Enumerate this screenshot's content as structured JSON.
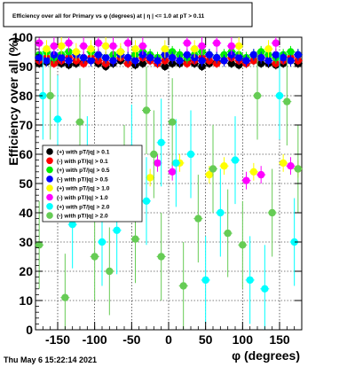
{
  "title": "Efficiency over all for Primary vs φ (degrees) at | η | <= 1.0 at pT > 0.11",
  "timestamp": "Thu May  6 15:22:14 2021",
  "chart_data": {
    "type": "scatter",
    "xlabel": "φ (degrees)",
    "ylabel": "Efficiency over all (%)",
    "xlim": [
      -180,
      180
    ],
    "ylim": [
      0,
      100
    ],
    "x_ticks": [
      -150,
      -100,
      -50,
      0,
      50,
      100,
      150
    ],
    "x_tick_labels": [
      "-150",
      "-100",
      "-50",
      "0",
      "50",
      "100",
      "150"
    ],
    "y_ticks": [
      0,
      10,
      20,
      30,
      40,
      50,
      60,
      70,
      80,
      90,
      100
    ],
    "y_tick_labels": [
      "0",
      "10",
      "20",
      "30",
      "40",
      "50",
      "60",
      "70",
      "80",
      "90",
      "100"
    ],
    "grid": true,
    "legend_position": "left-middle",
    "series": [
      {
        "name": "(+) with pT/|q| > 0.1",
        "color": "#000000",
        "x": [
          -175,
          -165,
          -155,
          -145,
          -135,
          -125,
          -115,
          -105,
          -95,
          -85,
          -75,
          -65,
          -55,
          -45,
          -35,
          -25,
          -15,
          -5,
          5,
          15,
          25,
          35,
          45,
          55,
          65,
          75,
          85,
          95,
          105,
          115,
          125,
          135,
          145,
          155,
          165,
          175
        ],
        "y": [
          91,
          91.5,
          92,
          91,
          90.5,
          91,
          91.5,
          92,
          91,
          90,
          91,
          92,
          91,
          90.5,
          91,
          92,
          91,
          90,
          91,
          91,
          92,
          91,
          90,
          91,
          91.5,
          92,
          91,
          90.5,
          91,
          92,
          91,
          91,
          90.5,
          91,
          92,
          91
        ],
        "yerr": [
          1.5,
          1.5,
          1.5,
          1.5,
          1.5,
          1.5,
          1.5,
          1.5,
          1.5,
          1.5,
          1.5,
          1.5,
          1.5,
          1.5,
          1.5,
          1.5,
          1.5,
          1.5,
          1.5,
          1.5,
          1.5,
          1.5,
          1.5,
          1.5,
          1.5,
          1.5,
          1.5,
          1.5,
          1.5,
          1.5,
          1.5,
          1.5,
          1.5,
          1.5,
          1.5,
          1.5
        ]
      },
      {
        "name": "(-) with pT/|q| > 0.1",
        "color": "#ff0000",
        "x": [
          -175,
          -165,
          -155,
          -145,
          -135,
          -125,
          -115,
          -105,
          -95,
          -85,
          -75,
          -65,
          -55,
          -45,
          -35,
          -25,
          -15,
          -5,
          5,
          15,
          25,
          35,
          45,
          55,
          65,
          75,
          85,
          95,
          105,
          115,
          125,
          135,
          145,
          155,
          165,
          175
        ],
        "y": [
          92,
          93,
          91,
          92,
          93,
          92,
          91,
          93,
          92,
          91,
          92,
          93,
          91,
          92,
          93,
          92,
          91,
          92,
          93,
          92,
          91,
          92,
          93,
          92,
          91,
          92,
          93,
          92,
          91,
          92,
          93,
          92,
          91,
          92,
          93,
          92
        ],
        "yerr": [
          1.5,
          1.5,
          1.5,
          1.5,
          1.5,
          1.5,
          1.5,
          1.5,
          1.5,
          1.5,
          1.5,
          1.5,
          1.5,
          1.5,
          1.5,
          1.5,
          1.5,
          1.5,
          1.5,
          1.5,
          1.5,
          1.5,
          1.5,
          1.5,
          1.5,
          1.5,
          1.5,
          1.5,
          1.5,
          1.5,
          1.5,
          1.5,
          1.5,
          1.5,
          1.5,
          1.5
        ]
      },
      {
        "name": "(+) with pT/|q| > 0.5",
        "color": "#00ee00",
        "x": [
          -175,
          -165,
          -155,
          -145,
          -135,
          -125,
          -115,
          -105,
          -95,
          -85,
          -75,
          -65,
          -55,
          -45,
          -35,
          -25,
          -15,
          -5,
          5,
          15,
          25,
          35,
          45,
          55,
          65,
          75,
          85,
          95,
          105,
          115,
          125,
          135,
          145,
          155,
          165,
          175
        ],
        "y": [
          94,
          95,
          93,
          94,
          95,
          94,
          93,
          95,
          94,
          93,
          94,
          95,
          93,
          94,
          95,
          94,
          93,
          94,
          95,
          94,
          93,
          94,
          95,
          94,
          93,
          94,
          95,
          94,
          93,
          94,
          95,
          94,
          93,
          94,
          95,
          94
        ],
        "yerr": [
          2,
          2,
          2,
          2,
          2,
          2,
          2,
          2,
          2,
          2,
          2,
          2,
          2,
          2,
          2,
          2,
          2,
          2,
          2,
          2,
          2,
          2,
          2,
          2,
          2,
          2,
          2,
          2,
          2,
          2,
          2,
          2,
          2,
          2,
          2,
          2
        ]
      },
      {
        "name": "(-) with pT/|q| > 0.5",
        "color": "#0000ff",
        "x": [
          -175,
          -165,
          -155,
          -145,
          -135,
          -125,
          -115,
          -105,
          -95,
          -85,
          -75,
          -65,
          -55,
          -45,
          -35,
          -25,
          -15,
          -5,
          5,
          15,
          25,
          35,
          45,
          55,
          65,
          75,
          85,
          95,
          105,
          115,
          125,
          135,
          145,
          155,
          165,
          175
        ],
        "y": [
          93,
          92,
          94,
          93,
          92,
          94,
          93,
          92,
          94,
          93,
          92,
          94,
          93,
          92,
          94,
          93,
          92,
          94,
          93,
          92,
          94,
          93,
          92,
          94,
          93,
          92,
          94,
          93,
          92,
          94,
          93,
          92,
          94,
          93,
          92,
          94
        ],
        "yerr": [
          2,
          2,
          2,
          2,
          2,
          2,
          2,
          2,
          2,
          2,
          2,
          2,
          2,
          2,
          2,
          2,
          2,
          2,
          2,
          2,
          2,
          2,
          2,
          2,
          2,
          2,
          2,
          2,
          2,
          2,
          2,
          2,
          2,
          2,
          2,
          2
        ]
      },
      {
        "name": "(+) with pT/|q| > 1.0",
        "color": "#ffff00",
        "x": [
          -165,
          -145,
          -125,
          -105,
          -85,
          -65,
          -45,
          -25,
          -5,
          15,
          35,
          55,
          75,
          95,
          115,
          135,
          155,
          175
        ],
        "y": [
          96,
          97,
          95,
          96,
          97,
          95,
          96,
          52,
          96,
          57,
          96,
          53,
          56,
          97,
          54,
          96,
          57,
          55
        ],
        "yerr": [
          3,
          3,
          3,
          3,
          3,
          3,
          3,
          3,
          3,
          3,
          3,
          3,
          3,
          3,
          3,
          3,
          3,
          3
        ]
      },
      {
        "name": "(-) with pT/|q| > 1.0",
        "color": "#ff00ff",
        "x": [
          -175,
          -155,
          -135,
          -115,
          -95,
          -75,
          -55,
          -35,
          -15,
          5,
          25,
          45,
          65,
          85,
          105,
          125,
          145,
          165
        ],
        "y": [
          98,
          97,
          98,
          97,
          98,
          97,
          98,
          97,
          57,
          54,
          98,
          97,
          98,
          97,
          51,
          53,
          98,
          56
        ],
        "yerr": [
          3,
          3,
          3,
          3,
          3,
          3,
          3,
          3,
          3,
          3,
          3,
          3,
          3,
          3,
          3,
          3,
          3,
          3
        ]
      },
      {
        "name": "(+) with pT/|q| > 2.0",
        "color": "#00ffff",
        "x": [
          -170,
          -150,
          -130,
          -110,
          -90,
          -70,
          -50,
          -30,
          -10,
          10,
          30,
          50,
          70,
          90,
          110,
          130,
          150,
          170
        ],
        "y": [
          80,
          72,
          36,
          58,
          30,
          34,
          62,
          44,
          64,
          57,
          60,
          17,
          40,
          58,
          17,
          14,
          80,
          30
        ],
        "yerr": [
          15,
          15,
          15,
          15,
          15,
          15,
          15,
          15,
          15,
          15,
          15,
          15,
          15,
          15,
          15,
          15,
          15,
          15
        ]
      },
      {
        "name": "(-) with pT/|q| > 2.0",
        "color": "#66cc55",
        "x": [
          -175,
          -160,
          -140,
          -120,
          -100,
          -80,
          -60,
          -45,
          -30,
          -20,
          -10,
          5,
          20,
          40,
          60,
          80,
          100,
          120,
          140,
          160,
          175
        ],
        "y": [
          29,
          80,
          11,
          71,
          25,
          20,
          55,
          31,
          75,
          60,
          25,
          71,
          15,
          38,
          55,
          33,
          29,
          80,
          40,
          78,
          55
        ],
        "yerr": [
          15,
          15,
          15,
          15,
          15,
          15,
          15,
          15,
          15,
          15,
          15,
          15,
          15,
          15,
          15,
          15,
          15,
          15,
          15,
          15,
          15
        ]
      }
    ]
  }
}
